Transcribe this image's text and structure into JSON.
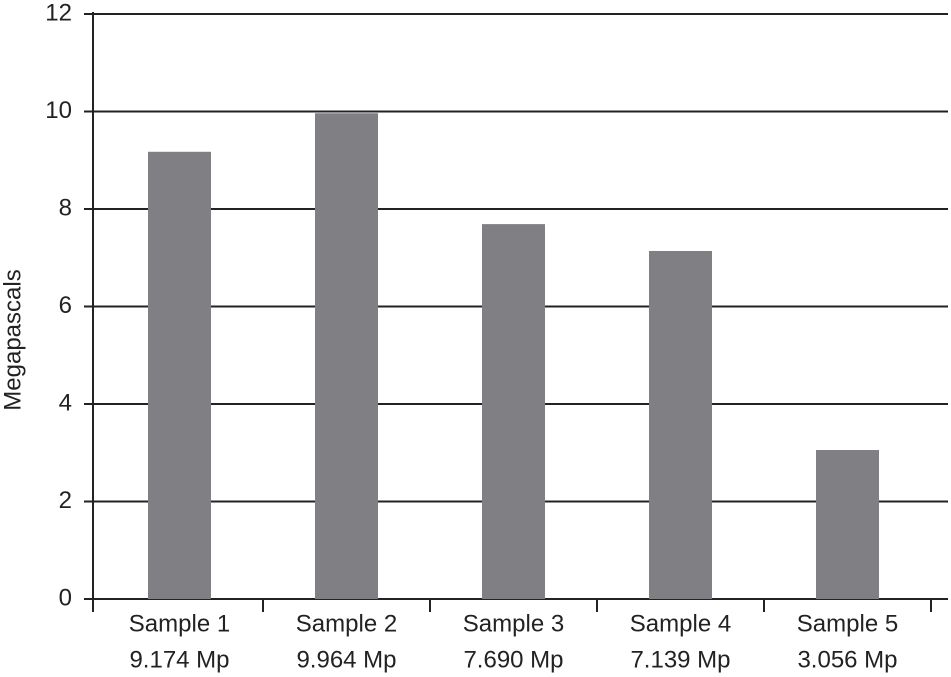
{
  "chart_data": {
    "type": "bar",
    "y_label": "Megapascals",
    "categories": [
      "Sample 1",
      "Sample 2",
      "Sample 3",
      "Sample 4",
      "Sample 5"
    ],
    "values": [
      9.174,
      9.964,
      7.69,
      7.139,
      3.056
    ],
    "value_labels": [
      "9.174 Mp",
      "9.964 Mp",
      "7.690 Mp",
      "7.139 Mp",
      "3.056 Mp"
    ],
    "color": "#808084",
    "ylim": [
      0,
      12
    ],
    "yticks": [
      0,
      2,
      4,
      6,
      8,
      10,
      12
    ],
    "grid": true
  }
}
